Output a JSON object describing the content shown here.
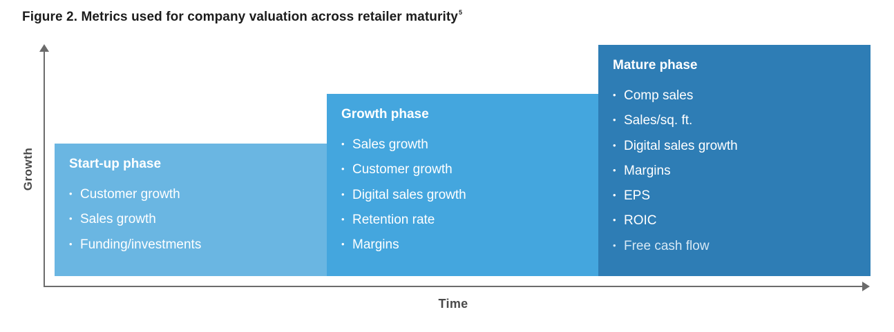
{
  "figure": {
    "title": "Figure 2. Metrics used for company valuation across retailer maturity",
    "footnote_ref": "5"
  },
  "axes": {
    "y_label": "Growth",
    "x_label": "Time"
  },
  "colors": {
    "startup": "#6ab6e2",
    "growth": "#44a6de",
    "mature": "#2e7db5",
    "axis": "#6b6b6b"
  },
  "phases": [
    {
      "title": "Start-up phase",
      "items": [
        "Customer growth",
        "Sales growth",
        "Funding/investments"
      ]
    },
    {
      "title": "Growth phase",
      "items": [
        "Sales growth",
        "Customer growth",
        "Digital sales growth",
        "Retention rate",
        "Margins"
      ]
    },
    {
      "title": "Mature phase",
      "items": [
        "Comp sales",
        "Sales/sq. ft.",
        "Digital sales growth",
        "Margins",
        "EPS",
        "ROIC",
        "Free cash flow"
      ]
    }
  ]
}
